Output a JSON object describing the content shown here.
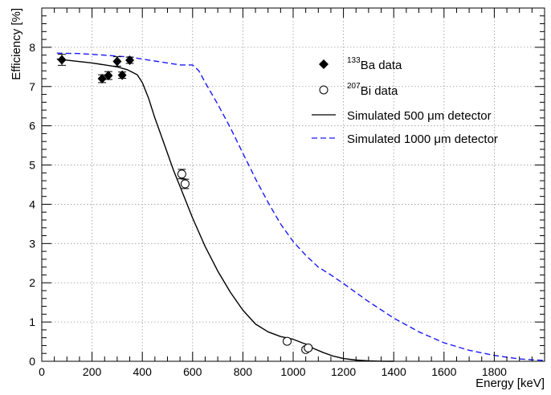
{
  "chart_data": {
    "type": "line",
    "xlabel": "Energy [keV]",
    "ylabel": "Efficiency [%]",
    "xlim": [
      0,
      2000
    ],
    "ylim": [
      0,
      9
    ],
    "x_ticks": [
      0,
      200,
      400,
      600,
      800,
      1000,
      1200,
      1400,
      1600,
      1800
    ],
    "y_ticks": [
      0,
      1,
      2,
      3,
      4,
      5,
      6,
      7,
      8
    ],
    "grid": true,
    "legend_position": "top-right",
    "colors": {
      "sim500": "#000000",
      "sim1000": "#1a1aff",
      "markers": "#000000"
    },
    "legend": [
      {
        "sup": "133",
        "text": "Ba data",
        "marker": "filled-diamond"
      },
      {
        "sup": "207",
        "text": "Bi data",
        "marker": "open-circle"
      },
      {
        "sup": "",
        "text": "Simulated 500 μm detector",
        "marker": "solid-line"
      },
      {
        "sup": "",
        "text": "Simulated 1000 μm detector",
        "marker": "dashed-line"
      }
    ],
    "series": [
      {
        "name": "133Ba data",
        "kind": "points",
        "marker": "filled-diamond",
        "points": [
          {
            "x": 80,
            "y": 7.68,
            "err": 0.14
          },
          {
            "x": 240,
            "y": 7.2,
            "err": 0.1
          },
          {
            "x": 265,
            "y": 7.28,
            "err": 0.1
          },
          {
            "x": 300,
            "y": 7.64,
            "err": 0.12
          },
          {
            "x": 320,
            "y": 7.29,
            "err": 0.08
          },
          {
            "x": 350,
            "y": 7.67,
            "err": 0.08
          }
        ]
      },
      {
        "name": "207Bi data",
        "kind": "points",
        "marker": "open-circle",
        "points": [
          {
            "x": 557,
            "y": 4.77,
            "err": 0.12
          },
          {
            "x": 570,
            "y": 4.52,
            "err": 0.12
          },
          {
            "x": 976,
            "y": 0.51,
            "err": 0.05
          },
          {
            "x": 1050,
            "y": 0.3,
            "err": 0.05
          },
          {
            "x": 1060,
            "y": 0.34,
            "err": 0.05
          }
        ]
      },
      {
        "name": "Simulated 500 μm detector",
        "kind": "line",
        "dash": false,
        "x": [
          60,
          200,
          300,
          340,
          380,
          400,
          425,
          450,
          475,
          500,
          525,
          550,
          575,
          600,
          650,
          700,
          750,
          800,
          850,
          900,
          950,
          1000,
          1040,
          1055,
          1080,
          1120,
          1160,
          1200,
          1250,
          1300,
          1350,
          1400
        ],
        "y": [
          7.7,
          7.6,
          7.5,
          7.43,
          7.3,
          7.1,
          6.7,
          6.2,
          5.75,
          5.3,
          4.85,
          4.45,
          4.05,
          3.65,
          2.92,
          2.3,
          1.76,
          1.3,
          0.95,
          0.75,
          0.63,
          0.56,
          0.46,
          0.43,
          0.33,
          0.22,
          0.13,
          0.07,
          0.03,
          0.01,
          0.003,
          0.0
        ]
      },
      {
        "name": "Simulated 1000 μm detector",
        "kind": "line",
        "dash": true,
        "x": [
          60,
          150,
          250,
          350,
          450,
          550,
          600,
          625,
          650,
          700,
          750,
          800,
          850,
          900,
          950,
          1000,
          1050,
          1100,
          1150,
          1200,
          1300,
          1400,
          1500,
          1600,
          1700,
          1800,
          1900,
          2000
        ],
        "y": [
          7.85,
          7.84,
          7.8,
          7.75,
          7.65,
          7.55,
          7.55,
          7.4,
          7.1,
          6.55,
          5.95,
          5.3,
          4.65,
          4.05,
          3.5,
          3.05,
          2.7,
          2.4,
          2.2,
          1.98,
          1.52,
          1.1,
          0.75,
          0.47,
          0.28,
          0.15,
          0.06,
          0.02
        ]
      }
    ]
  }
}
